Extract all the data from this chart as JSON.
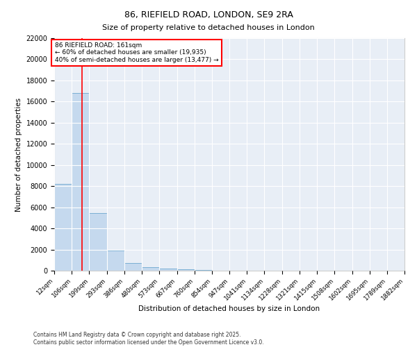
{
  "title": "86, RIEFIELD ROAD, LONDON, SE9 2RA",
  "subtitle": "Size of property relative to detached houses in London",
  "xlabel": "Distribution of detached houses by size in London",
  "ylabel": "Number of detached properties",
  "bar_color": "#c5d9ee",
  "bar_edge_color": "#7bafd4",
  "background_color": "#e8eef6",
  "grid_color": "#ffffff",
  "annotation_line1": "86 RIEFIELD ROAD: 161sqm",
  "annotation_line2": "← 60% of detached houses are smaller (19,935)",
  "annotation_line3": "40% of semi-detached houses are larger (13,477) →",
  "vline_x": 161,
  "vline_color": "red",
  "bin_edges": [
    12,
    106,
    199,
    293,
    386,
    480,
    573,
    667,
    760,
    854,
    947,
    1041,
    1134,
    1228,
    1321,
    1415,
    1508,
    1602,
    1695,
    1789,
    1882
  ],
  "bar_heights": [
    8200,
    16800,
    5450,
    1900,
    700,
    350,
    220,
    100,
    50,
    20,
    10,
    5,
    3,
    2,
    1,
    1,
    0,
    0,
    0,
    0
  ],
  "ylim": [
    0,
    22000
  ],
  "yticks": [
    0,
    2000,
    4000,
    6000,
    8000,
    10000,
    12000,
    14000,
    16000,
    18000,
    20000,
    22000
  ],
  "footnote1": "Contains HM Land Registry data © Crown copyright and database right 2025.",
  "footnote2": "Contains public sector information licensed under the Open Government Licence v3.0.",
  "fig_width": 6.0,
  "fig_height": 5.0,
  "fig_dpi": 100
}
